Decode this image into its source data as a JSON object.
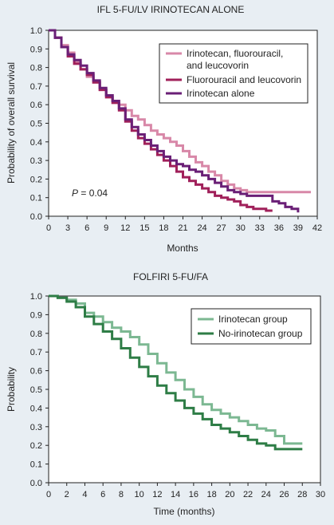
{
  "background": "#e8eef3",
  "chart_data": [
    {
      "type": "line",
      "step": true,
      "title": "IFL 5-FU/LV IRINOTECAN ALONE",
      "xlabel": "Months",
      "ylabel": "Probability of overall survival",
      "xlim": [
        0,
        42
      ],
      "ylim": [
        0,
        1.0
      ],
      "xticks": [
        0,
        3,
        6,
        9,
        12,
        15,
        18,
        21,
        24,
        27,
        30,
        33,
        36,
        39,
        42
      ],
      "yticks": [
        0.0,
        0.1,
        0.2,
        0.3,
        0.4,
        0.5,
        0.6,
        0.7,
        0.8,
        0.9,
        1.0
      ],
      "grid": false,
      "legend_position": "top-right",
      "annotation": {
        "italic": "P",
        "rest": " = 0.04"
      },
      "series": [
        {
          "name": "Irinotecan, fluorouracil, and leucovorin",
          "color": "#d888a8",
          "x": [
            0,
            1,
            2,
            3,
            4,
            5,
            6,
            7,
            8,
            9,
            10,
            11,
            12,
            13,
            14,
            15,
            16,
            17,
            18,
            19,
            20,
            21,
            22,
            23,
            24,
            25,
            26,
            27,
            28,
            29,
            30,
            31,
            41
          ],
          "y": [
            1.0,
            0.96,
            0.92,
            0.88,
            0.83,
            0.79,
            0.75,
            0.72,
            0.68,
            0.65,
            0.62,
            0.6,
            0.57,
            0.54,
            0.52,
            0.49,
            0.46,
            0.44,
            0.42,
            0.4,
            0.38,
            0.35,
            0.32,
            0.29,
            0.27,
            0.24,
            0.22,
            0.19,
            0.17,
            0.15,
            0.14,
            0.13,
            0.13
          ]
        },
        {
          "name": "Fluorouracil and leucovorin",
          "color": "#a0205a",
          "x": [
            0,
            1,
            2,
            3,
            4,
            5,
            6,
            7,
            8,
            9,
            10,
            11,
            12,
            13,
            14,
            15,
            16,
            17,
            18,
            19,
            20,
            21,
            22,
            23,
            24,
            25,
            26,
            27,
            28,
            29,
            30,
            31,
            32,
            33,
            34,
            35
          ],
          "y": [
            1.0,
            0.96,
            0.91,
            0.86,
            0.82,
            0.79,
            0.76,
            0.72,
            0.68,
            0.64,
            0.61,
            0.57,
            0.51,
            0.46,
            0.42,
            0.39,
            0.36,
            0.33,
            0.3,
            0.27,
            0.24,
            0.21,
            0.19,
            0.17,
            0.15,
            0.13,
            0.11,
            0.1,
            0.09,
            0.08,
            0.06,
            0.05,
            0.04,
            0.04,
            0.03,
            0.03
          ]
        },
        {
          "name": "Irinotecan alone",
          "color": "#6a1f76",
          "x": [
            0,
            1,
            2,
            3,
            4,
            5,
            6,
            7,
            8,
            9,
            10,
            11,
            12,
            13,
            14,
            15,
            16,
            17,
            18,
            19,
            20,
            21,
            22,
            23,
            24,
            25,
            26,
            27,
            28,
            29,
            30,
            31,
            32,
            33,
            34,
            35,
            36,
            37,
            38,
            39
          ],
          "y": [
            1.0,
            0.96,
            0.91,
            0.87,
            0.84,
            0.81,
            0.77,
            0.73,
            0.69,
            0.65,
            0.62,
            0.58,
            0.52,
            0.48,
            0.44,
            0.41,
            0.38,
            0.35,
            0.32,
            0.3,
            0.28,
            0.27,
            0.25,
            0.24,
            0.22,
            0.2,
            0.18,
            0.16,
            0.14,
            0.13,
            0.12,
            0.11,
            0.11,
            0.11,
            0.11,
            0.08,
            0.07,
            0.05,
            0.04,
            0.02
          ]
        }
      ]
    },
    {
      "type": "line",
      "step": true,
      "title": "FOLFIRI 5-FU/FA",
      "xlabel": "Time (months)",
      "ylabel": "Probability",
      "xlim": [
        0,
        30
      ],
      "ylim": [
        0,
        1.0
      ],
      "xticks": [
        0,
        2,
        4,
        6,
        8,
        10,
        12,
        14,
        16,
        18,
        20,
        22,
        24,
        26,
        28,
        30
      ],
      "yticks": [
        0.0,
        0.1,
        0.2,
        0.3,
        0.4,
        0.5,
        0.6,
        0.7,
        0.8,
        0.9,
        1.0
      ],
      "grid": false,
      "legend_position": "top-right",
      "series": [
        {
          "name": "Irinotecan group",
          "color": "#7cb892",
          "x": [
            0,
            1,
            2,
            3,
            4,
            5,
            6,
            7,
            8,
            9,
            10,
            11,
            12,
            13,
            14,
            15,
            16,
            17,
            18,
            19,
            20,
            21,
            22,
            23,
            24,
            25,
            26,
            27,
            28
          ],
          "y": [
            1.0,
            0.99,
            0.98,
            0.96,
            0.91,
            0.89,
            0.86,
            0.83,
            0.81,
            0.78,
            0.74,
            0.69,
            0.64,
            0.59,
            0.55,
            0.5,
            0.46,
            0.42,
            0.39,
            0.37,
            0.35,
            0.33,
            0.31,
            0.29,
            0.28,
            0.25,
            0.21,
            0.21,
            0.21
          ]
        },
        {
          "name": "No-irinotecan group",
          "color": "#2e7d46",
          "x": [
            0,
            1,
            2,
            3,
            4,
            5,
            6,
            7,
            8,
            9,
            10,
            11,
            12,
            13,
            14,
            15,
            16,
            17,
            18,
            19,
            20,
            21,
            22,
            23,
            24,
            25,
            26,
            27,
            28
          ],
          "y": [
            1.0,
            0.99,
            0.97,
            0.94,
            0.89,
            0.85,
            0.81,
            0.77,
            0.72,
            0.67,
            0.62,
            0.57,
            0.52,
            0.48,
            0.44,
            0.4,
            0.37,
            0.34,
            0.31,
            0.29,
            0.27,
            0.25,
            0.23,
            0.21,
            0.2,
            0.18,
            0.18,
            0.18,
            0.18
          ]
        }
      ]
    }
  ]
}
